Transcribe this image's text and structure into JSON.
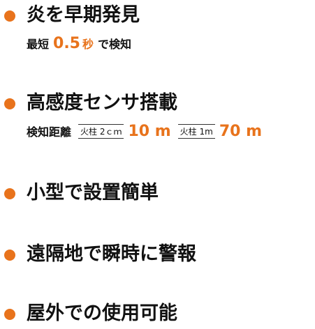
{
  "items": [
    {
      "title": "炎を早期発見",
      "detail": [
        {
          "text": "最短",
          "style": "plain"
        },
        {
          "text": "0.5",
          "style": "accent"
        },
        {
          "text": "秒",
          "style": "accent-small"
        },
        {
          "text": "で検知",
          "style": "plain"
        }
      ]
    },
    {
      "title": "高感度センサ搭載",
      "detail": [
        {
          "text": "検知距離",
          "style": "plain"
        },
        {
          "text": "火柱 2ｃｍ",
          "style": "boxed"
        },
        {
          "text": "10 m",
          "style": "accent"
        },
        {
          "text": "火柱 1m",
          "style": "boxed"
        },
        {
          "text": "70 m",
          "style": "accent"
        }
      ]
    },
    {
      "title": "小型で設置簡単"
    },
    {
      "title": "遠隔地で瞬時に警報"
    },
    {
      "title": "屋外での使用可能"
    }
  ]
}
